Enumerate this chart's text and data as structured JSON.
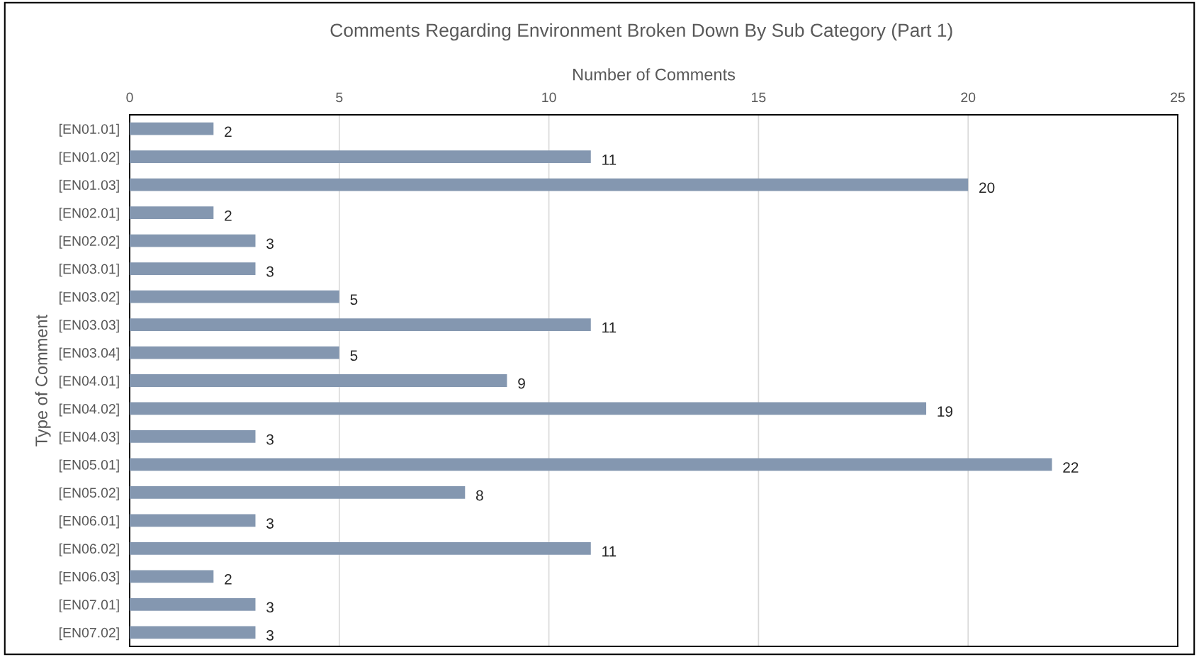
{
  "chart_data": {
    "type": "bar",
    "orientation": "horizontal",
    "title": "Comments Regarding Environment Broken Down By Sub Category (Part 1)",
    "xlabel": "Number of Comments",
    "ylabel": "Type of Comment",
    "categories": [
      "[EN01.01]",
      "[EN01.02]",
      "[EN01.03]",
      "[EN02.01]",
      "[EN02.02]",
      "[EN03.01]",
      "[EN03.02]",
      "[EN03.03]",
      "[EN03.04]",
      "[EN04.01]",
      "[EN04.02]",
      "[EN04.03]",
      "[EN05.01]",
      "[EN05.02]",
      "[EN06.01]",
      "[EN06.02]",
      "[EN06.03]",
      "[EN07.01]",
      "[EN07.02]"
    ],
    "values": [
      2,
      11,
      20,
      2,
      3,
      3,
      5,
      11,
      5,
      9,
      19,
      3,
      22,
      8,
      3,
      11,
      2,
      3,
      3
    ],
    "color": "#8497b0",
    "xlim": [
      0,
      25
    ],
    "xticks": [
      0,
      5,
      10,
      15,
      20,
      25
    ],
    "grid": "x",
    "data_labels": true
  }
}
